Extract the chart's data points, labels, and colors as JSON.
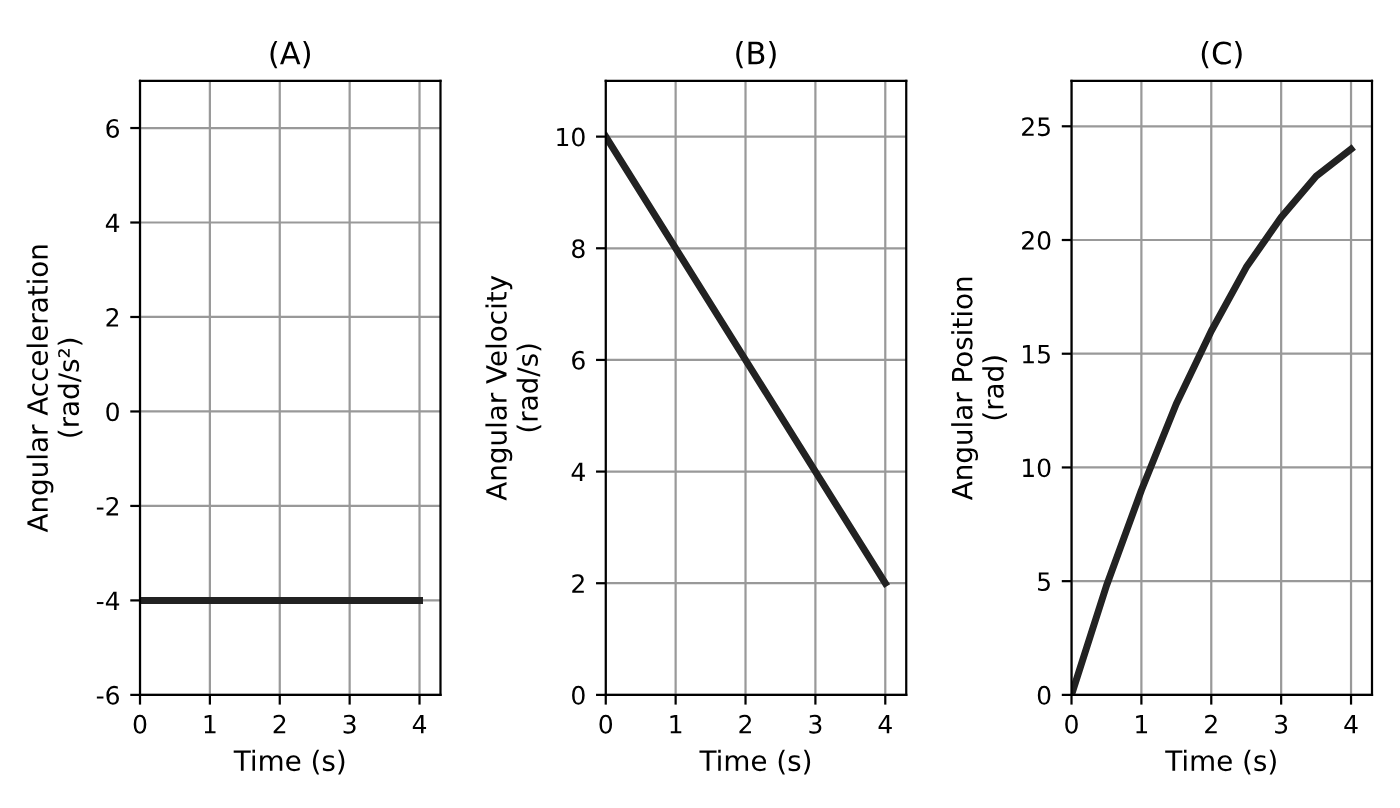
{
  "chart_data": [
    {
      "type": "line",
      "title": "(A)",
      "xlabel": "Time (s)",
      "ylabel": "Angular Acceleration\n(rad/s²)",
      "x": [
        0,
        4
      ],
      "series": [
        {
          "color": "#222222",
          "values": [
            -4,
            -4
          ]
        }
      ],
      "xlim": [
        0,
        4.3
      ],
      "ylim": [
        -6,
        7
      ],
      "xticks": [
        0,
        1,
        2,
        3,
        4
      ],
      "yticks": [
        -6,
        -4,
        -2,
        0,
        2,
        4,
        6
      ],
      "grid": true
    },
    {
      "type": "line",
      "title": "(B)",
      "xlabel": "Time (s)",
      "ylabel": "Angular Velocity\n(rad/s)",
      "x": [
        0,
        4
      ],
      "series": [
        {
          "color": "#222222",
          "values": [
            10,
            2
          ]
        }
      ],
      "xlim": [
        0,
        4.3
      ],
      "ylim": [
        0,
        11
      ],
      "xticks": [
        0,
        1,
        2,
        3,
        4
      ],
      "yticks": [
        0,
        2,
        4,
        6,
        8,
        10
      ],
      "grid": true
    },
    {
      "type": "line",
      "title": "(C)",
      "xlabel": "Time (s)",
      "ylabel": "Angular Position\n(rad)",
      "x": [
        0,
        0.5,
        1,
        1.5,
        2,
        2.5,
        3,
        3.5,
        4
      ],
      "series": [
        {
          "color": "#222222",
          "values": [
            0,
            4.8,
            9,
            12.8,
            16,
            18.8,
            21,
            22.8,
            24
          ]
        }
      ],
      "xlim": [
        0,
        4.3
      ],
      "ylim": [
        0,
        27
      ],
      "xticks": [
        0,
        1,
        2,
        3,
        4
      ],
      "yticks": [
        0,
        5,
        10,
        15,
        20,
        25
      ],
      "grid": true
    }
  ]
}
